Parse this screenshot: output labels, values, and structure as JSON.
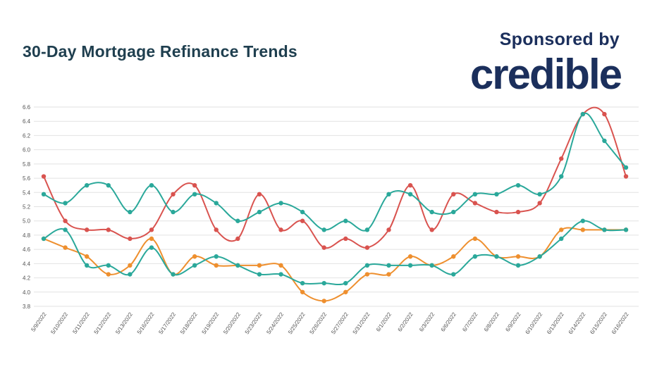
{
  "header": {
    "title": "30-Day Mortgage Refinance Trends",
    "sponsor_label": "Sponsored by",
    "brand": "credible"
  },
  "colors": {
    "title": "#1f3f4f",
    "brand": "#1b2f5c",
    "grid": "#e2e2e2"
  },
  "chart_data": {
    "type": "line",
    "title": "30-Day Mortgage Refinance Trends",
    "xlabel": "",
    "ylabel": "",
    "ylim": [
      3.8,
      6.6
    ],
    "yticks": [
      "3.8",
      "4.0",
      "4.2",
      "4.4",
      "4.6",
      "4.8",
      "5.0",
      "5.2",
      "5.4",
      "5.6",
      "5.8",
      "6.0",
      "6.2",
      "6.4",
      "6.6"
    ],
    "grid": true,
    "legend": "none",
    "categories": [
      "5/9/2022",
      "5/10/2022",
      "5/11/2022",
      "5/12/2022",
      "5/13/2022",
      "5/16/2022",
      "5/17/2022",
      "5/18/2022",
      "5/19/2022",
      "5/20/2022",
      "5/23/2022",
      "5/24/2022",
      "5/25/2022",
      "5/26/2022",
      "5/27/2022",
      "5/31/2022",
      "6/1/2022",
      "6/2/2022",
      "6/3/2022",
      "6/6/2022",
      "6/7/2022",
      "6/8/2022",
      "6/9/2022",
      "6/10/2022",
      "6/13/2022",
      "6/14/2022",
      "6/15/2022",
      "6/16/2022"
    ],
    "series": [
      {
        "color": "#d9534f",
        "values": [
          5.625,
          5.0,
          4.875,
          4.875,
          4.75,
          4.875,
          5.375,
          5.5,
          4.875,
          4.75,
          5.375,
          4.875,
          5.0,
          4.625,
          4.75,
          4.625,
          4.875,
          5.5,
          4.875,
          5.375,
          5.25,
          5.125,
          5.125,
          5.25,
          5.875,
          6.5,
          6.5,
          5.625
        ]
      },
      {
        "color": "#2aa89a",
        "values": [
          5.375,
          5.25,
          5.5,
          5.5,
          5.125,
          5.5,
          5.125,
          5.375,
          5.25,
          5.0,
          5.125,
          5.25,
          5.125,
          4.875,
          5.0,
          4.875,
          5.375,
          5.375,
          5.125,
          5.125,
          5.375,
          5.375,
          5.5,
          5.375,
          5.625,
          6.5,
          6.125,
          5.75
        ]
      },
      {
        "color": "#ee8f2e",
        "values": [
          4.75,
          4.625,
          4.5,
          4.25,
          4.375,
          4.75,
          4.25,
          4.5,
          4.375,
          4.375,
          4.375,
          4.375,
          4.0,
          3.875,
          4.0,
          4.25,
          4.25,
          4.5,
          4.375,
          4.5,
          4.75,
          4.5,
          4.5,
          4.5,
          4.875,
          4.875,
          4.875,
          4.875
        ]
      },
      {
        "color": "#2aa89a",
        "values": [
          4.75,
          4.875,
          4.375,
          4.375,
          4.25,
          4.625,
          4.25,
          4.375,
          4.5,
          4.375,
          4.25,
          4.25,
          4.125,
          4.125,
          4.125,
          4.375,
          4.375,
          4.375,
          4.375,
          4.25,
          4.5,
          4.5,
          4.375,
          4.5,
          4.75,
          5.0,
          4.875,
          4.875
        ]
      }
    ]
  }
}
